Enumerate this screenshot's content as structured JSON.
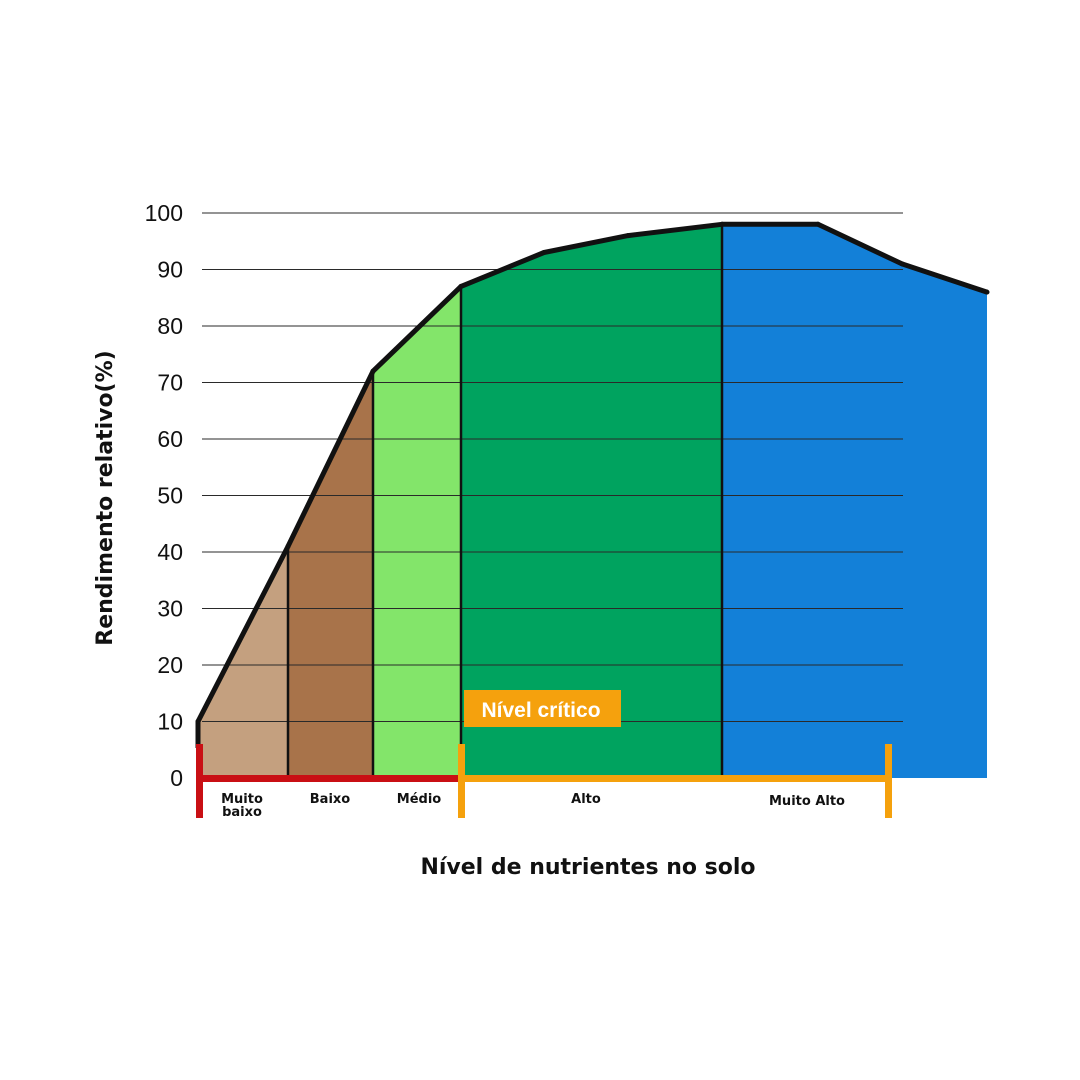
{
  "chart_data": {
    "type": "area",
    "title": "",
    "xlabel": "Nível de nutrientes no solo",
    "ylabel": "Rendimento relativo(%)",
    "ylim": [
      0,
      100
    ],
    "y_ticks": [
      "0",
      "10",
      "20",
      "30",
      "40",
      "50",
      "60",
      "70",
      "80",
      "90",
      "100"
    ],
    "grid": true,
    "curve_x": [
      0,
      1,
      2,
      3,
      4,
      5,
      6,
      7,
      8,
      9
    ],
    "curve_y": [
      10,
      41,
      72,
      87,
      93,
      96,
      98,
      98,
      91,
      86
    ],
    "zones": [
      {
        "label": "Muito baixo",
        "x_start": 0,
        "x_end": 1,
        "color": "#c4a07f"
      },
      {
        "label": "Baixo",
        "x_start": 1,
        "x_end": 2,
        "color": "#a8734a"
      },
      {
        "label": "Médio",
        "x_start": 2,
        "x_end": 3,
        "color": "#83e56a"
      },
      {
        "label": "Alto",
        "x_start": 3,
        "x_end": 6,
        "color": "#00a35f"
      },
      {
        "label": "Muito Alto",
        "x_start": 6,
        "x_end": 9,
        "color": "#1380d8"
      }
    ],
    "critical_level": {
      "label": "Nível crítico",
      "color": "#f5a10d"
    },
    "low_range_color": "#c90f14",
    "high_range_color": "#f5a10d"
  }
}
